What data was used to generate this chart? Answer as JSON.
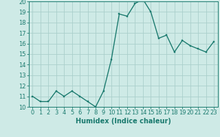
{
  "x": [
    0,
    1,
    2,
    3,
    4,
    5,
    6,
    7,
    8,
    9,
    10,
    11,
    12,
    13,
    14,
    15,
    16,
    17,
    18,
    19,
    20,
    21,
    22,
    23
  ],
  "y": [
    11,
    10.5,
    10.5,
    11.5,
    11,
    11.5,
    11,
    10.5,
    10,
    11.5,
    14.5,
    18.8,
    18.6,
    19.8,
    20.2,
    19,
    16.5,
    16.8,
    15.2,
    16.3,
    15.8,
    15.5,
    15.2,
    16.2
  ],
  "line_color": "#1a7a6e",
  "marker_color": "#1a7a6e",
  "bg_color": "#ceeae6",
  "grid_color": "#aacfcb",
  "xlabel": "Humidex (Indice chaleur)",
  "ylim": [
    10,
    20
  ],
  "xlim_min": -0.5,
  "xlim_max": 23.5,
  "yticks": [
    10,
    11,
    12,
    13,
    14,
    15,
    16,
    17,
    18,
    19,
    20
  ],
  "xticks": [
    0,
    1,
    2,
    3,
    4,
    5,
    6,
    7,
    8,
    9,
    10,
    11,
    12,
    13,
    14,
    15,
    16,
    17,
    18,
    19,
    20,
    21,
    22,
    23
  ],
  "tick_color": "#1a7a6e",
  "label_color": "#1a7a6e",
  "font_size": 6,
  "xlabel_fontsize": 7,
  "linewidth": 1.0,
  "markersize": 2.0
}
